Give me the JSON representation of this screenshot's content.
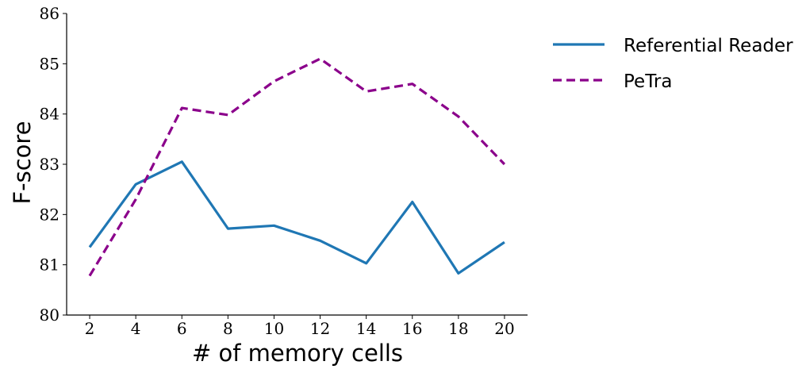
{
  "chart_data": {
    "type": "line",
    "xlabel": "# of memory cells",
    "ylabel": "F-score",
    "x": [
      2,
      4,
      6,
      8,
      10,
      12,
      14,
      16,
      18,
      20
    ],
    "xlim": [
      1,
      21
    ],
    "ylim": [
      80,
      86
    ],
    "xticks": [
      2,
      4,
      6,
      8,
      10,
      12,
      14,
      16,
      18,
      20
    ],
    "yticks": [
      80,
      81,
      82,
      83,
      84,
      85,
      86
    ],
    "grid": false,
    "legend_position": "top-right, outside plot",
    "series": [
      {
        "name": "Referential Reader",
        "color": "#1f77b4",
        "style": "solid",
        "values": [
          81.35,
          82.6,
          83.05,
          81.72,
          81.78,
          81.48,
          81.03,
          82.25,
          80.83,
          81.45
        ]
      },
      {
        "name": "PeTra",
        "color": "#8b008b",
        "style": "dashed",
        "values": [
          80.78,
          82.3,
          84.12,
          83.98,
          84.65,
          85.1,
          84.45,
          84.6,
          83.95,
          83.0
        ]
      }
    ]
  }
}
